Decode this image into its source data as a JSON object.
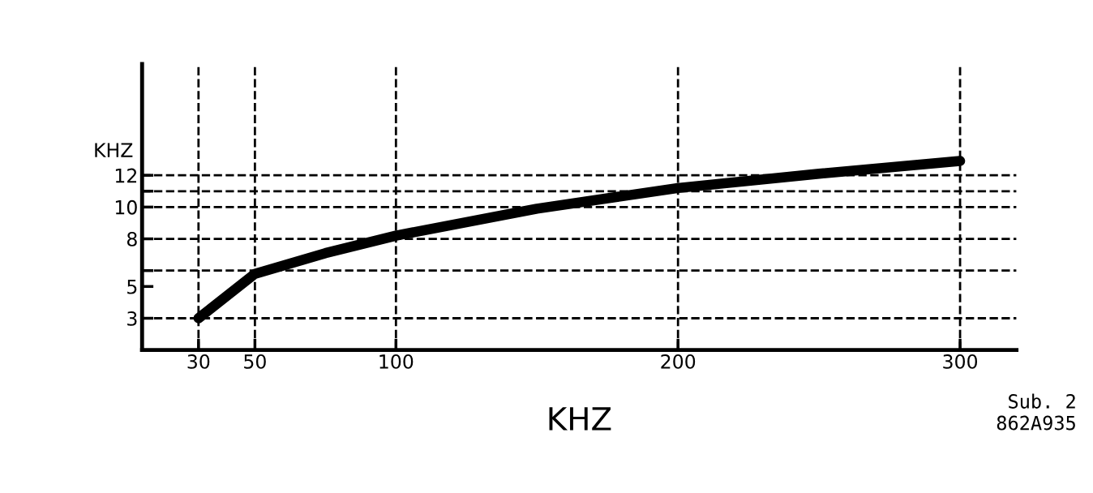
{
  "chart_data": {
    "type": "line",
    "xlabel": "KHZ",
    "ylabel": "KHZ",
    "series": [
      {
        "color": "#000000",
        "x": [
          30,
          50,
          75,
          100,
          150,
          200,
          250,
          300
        ],
        "values": [
          3,
          5.8,
          7.1,
          8.2,
          9.9,
          11.2,
          12.1,
          12.9
        ]
      }
    ],
    "xlim": [
      10,
      320
    ],
    "ylim": [
      1,
      19
    ],
    "xticks": [
      30,
      50,
      100,
      200,
      300
    ],
    "yticks": [
      3,
      5,
      {
        "value": 6,
        "label": null
      },
      8,
      10,
      {
        "value": 11,
        "label": null
      },
      12
    ],
    "ref_lines": [
      {
        "axis": "x",
        "value": 30,
        "color": "#000000",
        "line_style": "dashed"
      },
      {
        "axis": "x",
        "value": 50,
        "color": "#000000",
        "line_style": "dashed"
      },
      {
        "axis": "x",
        "value": 100,
        "color": "#000000",
        "line_style": "dashed"
      },
      {
        "axis": "x",
        "value": 200,
        "color": "#000000",
        "line_style": "dashed"
      },
      {
        "axis": "x",
        "value": 300,
        "color": "#000000",
        "line_style": "dashed"
      },
      {
        "axis": "y",
        "value": 3,
        "color": "#000000",
        "line_style": "dashed"
      },
      {
        "axis": "y",
        "value": 6,
        "color": "#000000",
        "line_style": "dashed"
      },
      {
        "axis": "y",
        "value": 8,
        "color": "#000000",
        "line_style": "dashed"
      },
      {
        "axis": "y",
        "value": 10,
        "color": "#000000",
        "line_style": "dashed"
      },
      {
        "axis": "y",
        "value": 11,
        "color": "#000000",
        "line_style": "dashed"
      },
      {
        "axis": "y",
        "value": 12,
        "color": "#000000",
        "line_style": "dashed"
      }
    ],
    "annotations": [
      "Sub. 2\n862A935"
    ],
    "grid": false,
    "legend": false,
    "line_style": "solid"
  }
}
